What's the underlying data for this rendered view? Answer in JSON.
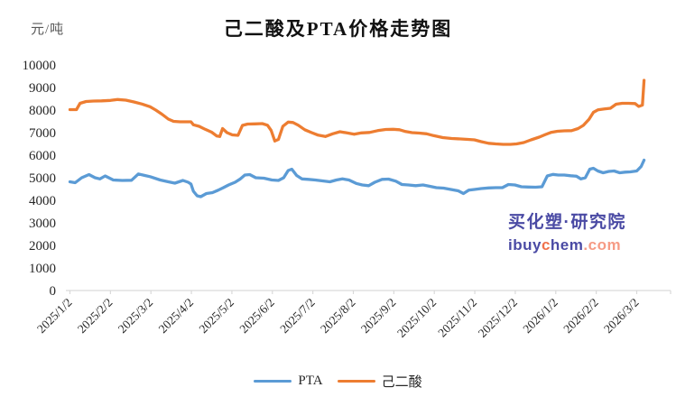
{
  "title": "己二酸及PTA价格走势图",
  "y_axis_unit": "元/吨",
  "colors": {
    "pta_line": "#5B9BD5",
    "adipic_line": "#ED7D31",
    "axis": "#D9D9D9",
    "tick_text": "#262626",
    "unit_text": "#595959",
    "watermark_purple": "#4A4AA4",
    "watermark_c_orange": "#F0714C",
    "watermark_com_salmon": "#F69B85"
  },
  "watermark": {
    "line1": "买化塑·研究院",
    "site_prefix": "ibuy",
    "site_c": "c",
    "site_mid": "hem",
    "site_suffix": ".com"
  },
  "legend": [
    {
      "label": "PTA",
      "color": "#5B9BD5"
    },
    {
      "label": "己二酸",
      "color": "#ED7D31"
    }
  ],
  "chart_data": {
    "type": "line",
    "title": "己二酸及PTA价格走势图",
    "ylabel": "元/吨",
    "xlabel": "",
    "ylim": [
      0,
      10000
    ],
    "ytick_step": 1000,
    "grid": false,
    "legend_position": "bottom",
    "x_tick_labels": [
      "2025/1/2",
      "2025/2/2",
      "2025/3/2",
      "2025/4/2",
      "2025/5/2",
      "2025/6/2",
      "2025/7/2",
      "2025/8/2",
      "2025/9/2",
      "2025/10/2",
      "2025/11/2",
      "2025/12/2",
      "2026/1/2",
      "2026/2/2",
      "2026/3/2"
    ],
    "x_unit": "month index, 0 = 2025/1/2, one unit per month tick",
    "series": [
      {
        "name": "PTA",
        "color": "#5B9BD5",
        "points": [
          [
            0,
            4820
          ],
          [
            0.13,
            4780
          ],
          [
            0.29,
            5000
          ],
          [
            0.47,
            5140
          ],
          [
            0.62,
            5000
          ],
          [
            0.74,
            4950
          ],
          [
            0.87,
            5080
          ],
          [
            1.07,
            4900
          ],
          [
            1.29,
            4880
          ],
          [
            1.52,
            4890
          ],
          [
            1.69,
            5170
          ],
          [
            1.85,
            5100
          ],
          [
            1.98,
            5050
          ],
          [
            2.23,
            4900
          ],
          [
            2.43,
            4820
          ],
          [
            2.59,
            4760
          ],
          [
            2.79,
            4880
          ],
          [
            2.92,
            4800
          ],
          [
            2.99,
            4720
          ],
          [
            3.05,
            4400
          ],
          [
            3.14,
            4200
          ],
          [
            3.23,
            4160
          ],
          [
            3.37,
            4300
          ],
          [
            3.52,
            4340
          ],
          [
            3.66,
            4450
          ],
          [
            3.79,
            4560
          ],
          [
            3.92,
            4680
          ],
          [
            4.08,
            4800
          ],
          [
            4.21,
            4950
          ],
          [
            4.32,
            5120
          ],
          [
            4.44,
            5140
          ],
          [
            4.59,
            5000
          ],
          [
            4.79,
            4980
          ],
          [
            4.99,
            4900
          ],
          [
            5.15,
            4880
          ],
          [
            5.28,
            5000
          ],
          [
            5.39,
            5320
          ],
          [
            5.48,
            5380
          ],
          [
            5.6,
            5100
          ],
          [
            5.73,
            4950
          ],
          [
            5.89,
            4930
          ],
          [
            6.06,
            4900
          ],
          [
            6.24,
            4860
          ],
          [
            6.42,
            4820
          ],
          [
            6.58,
            4900
          ],
          [
            6.73,
            4950
          ],
          [
            6.89,
            4900
          ],
          [
            7.07,
            4750
          ],
          [
            7.22,
            4680
          ],
          [
            7.38,
            4650
          ],
          [
            7.53,
            4800
          ],
          [
            7.71,
            4930
          ],
          [
            7.87,
            4940
          ],
          [
            8.05,
            4850
          ],
          [
            8.2,
            4700
          ],
          [
            8.36,
            4680
          ],
          [
            8.54,
            4650
          ],
          [
            8.72,
            4680
          ],
          [
            8.89,
            4620
          ],
          [
            9.05,
            4560
          ],
          [
            9.23,
            4540
          ],
          [
            9.41,
            4480
          ],
          [
            9.59,
            4420
          ],
          [
            9.72,
            4300
          ],
          [
            9.85,
            4450
          ],
          [
            9.99,
            4480
          ],
          [
            10.16,
            4520
          ],
          [
            10.34,
            4550
          ],
          [
            10.52,
            4560
          ],
          [
            10.68,
            4560
          ],
          [
            10.83,
            4700
          ],
          [
            10.99,
            4680
          ],
          [
            11.15,
            4600
          ],
          [
            11.32,
            4590
          ],
          [
            11.5,
            4580
          ],
          [
            11.66,
            4600
          ],
          [
            11.79,
            5080
          ],
          [
            11.93,
            5150
          ],
          [
            12.06,
            5120
          ],
          [
            12.21,
            5120
          ],
          [
            12.37,
            5090
          ],
          [
            12.51,
            5070
          ],
          [
            12.62,
            4950
          ],
          [
            12.73,
            5000
          ],
          [
            12.84,
            5380
          ],
          [
            12.93,
            5420
          ],
          [
            13.04,
            5300
          ],
          [
            13.17,
            5220
          ],
          [
            13.31,
            5280
          ],
          [
            13.44,
            5300
          ],
          [
            13.58,
            5220
          ],
          [
            13.71,
            5250
          ],
          [
            13.84,
            5260
          ],
          [
            14,
            5300
          ],
          [
            14.11,
            5500
          ],
          [
            14.18,
            5780
          ]
        ]
      },
      {
        "name": "己二酸",
        "color": "#ED7D31",
        "points": [
          [
            0,
            8020
          ],
          [
            0.16,
            8020
          ],
          [
            0.25,
            8300
          ],
          [
            0.4,
            8380
          ],
          [
            0.58,
            8400
          ],
          [
            0.78,
            8410
          ],
          [
            1,
            8430
          ],
          [
            1.18,
            8470
          ],
          [
            1.38,
            8440
          ],
          [
            1.58,
            8360
          ],
          [
            1.78,
            8270
          ],
          [
            1.98,
            8150
          ],
          [
            2.12,
            8000
          ],
          [
            2.27,
            7820
          ],
          [
            2.43,
            7600
          ],
          [
            2.56,
            7500
          ],
          [
            2.72,
            7480
          ],
          [
            2.88,
            7480
          ],
          [
            2.99,
            7480
          ],
          [
            3.05,
            7350
          ],
          [
            3.19,
            7280
          ],
          [
            3.34,
            7150
          ],
          [
            3.5,
            7020
          ],
          [
            3.63,
            6850
          ],
          [
            3.7,
            6830
          ],
          [
            3.77,
            7180
          ],
          [
            3.88,
            7000
          ],
          [
            4.01,
            6900
          ],
          [
            4.15,
            6880
          ],
          [
            4.26,
            7320
          ],
          [
            4.39,
            7380
          ],
          [
            4.57,
            7390
          ],
          [
            4.75,
            7400
          ],
          [
            4.88,
            7330
          ],
          [
            4.97,
            7100
          ],
          [
            5.06,
            6630
          ],
          [
            5.15,
            6700
          ],
          [
            5.26,
            7280
          ],
          [
            5.39,
            7470
          ],
          [
            5.51,
            7450
          ],
          [
            5.64,
            7330
          ],
          [
            5.8,
            7130
          ],
          [
            5.97,
            7000
          ],
          [
            6.13,
            6890
          ],
          [
            6.31,
            6830
          ],
          [
            6.49,
            6950
          ],
          [
            6.67,
            7040
          ],
          [
            6.84,
            6990
          ],
          [
            7.02,
            6930
          ],
          [
            7.2,
            6990
          ],
          [
            7.4,
            7010
          ],
          [
            7.6,
            7090
          ],
          [
            7.8,
            7140
          ],
          [
            7.98,
            7150
          ],
          [
            8.14,
            7130
          ],
          [
            8.29,
            7050
          ],
          [
            8.45,
            7000
          ],
          [
            8.63,
            6980
          ],
          [
            8.81,
            6950
          ],
          [
            8.98,
            6870
          ],
          [
            9.21,
            6780
          ],
          [
            9.43,
            6740
          ],
          [
            9.65,
            6720
          ],
          [
            9.83,
            6700
          ],
          [
            9.99,
            6680
          ],
          [
            10.16,
            6600
          ],
          [
            10.34,
            6530
          ],
          [
            10.52,
            6500
          ],
          [
            10.7,
            6480
          ],
          [
            10.88,
            6480
          ],
          [
            11.03,
            6500
          ],
          [
            11.21,
            6560
          ],
          [
            11.39,
            6680
          ],
          [
            11.59,
            6800
          ],
          [
            11.75,
            6920
          ],
          [
            11.88,
            7010
          ],
          [
            12.04,
            7060
          ],
          [
            12.21,
            7080
          ],
          [
            12.39,
            7090
          ],
          [
            12.55,
            7180
          ],
          [
            12.68,
            7320
          ],
          [
            12.82,
            7590
          ],
          [
            12.93,
            7900
          ],
          [
            13.04,
            8010
          ],
          [
            13.2,
            8050
          ],
          [
            13.35,
            8080
          ],
          [
            13.49,
            8260
          ],
          [
            13.64,
            8300
          ],
          [
            13.8,
            8300
          ],
          [
            13.96,
            8290
          ],
          [
            14.05,
            8160
          ],
          [
            14.14,
            8220
          ],
          [
            14.18,
            9320
          ]
        ]
      }
    ]
  }
}
